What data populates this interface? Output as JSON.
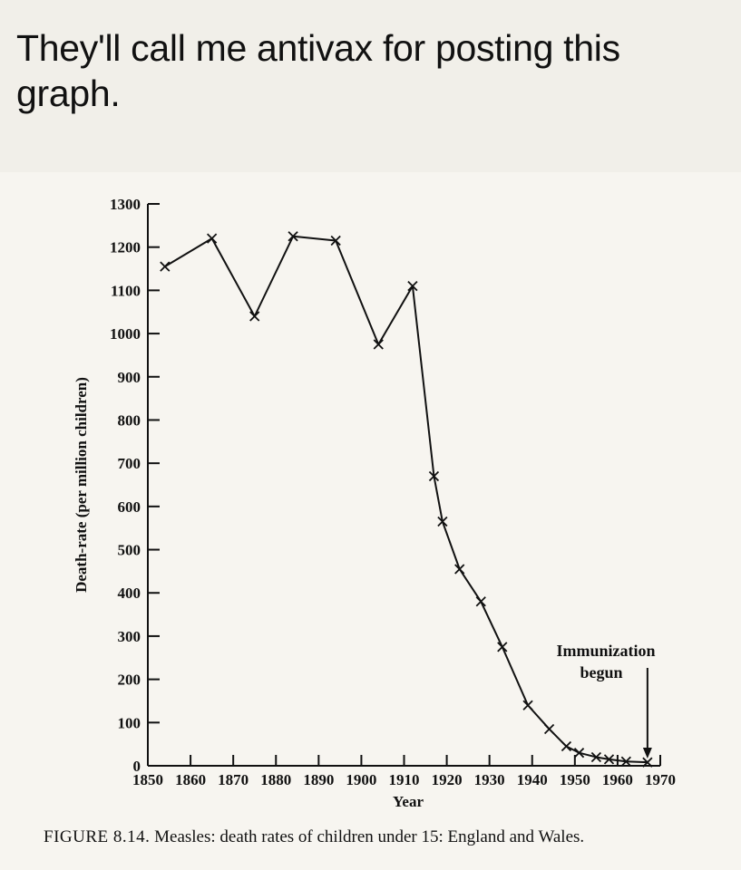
{
  "post": {
    "text": "They'll call me antivax for posting this graph."
  },
  "caption": {
    "label": "FIGURE 8.14.",
    "text": "Measles: death rates of children under 15: England and Wales."
  },
  "chart_data": {
    "type": "line",
    "title": "",
    "xlabel": "Year",
    "ylabel": "Death-rate (per million children)",
    "xlim": [
      1850,
      1970
    ],
    "ylim": [
      0,
      1300
    ],
    "x_ticks": [
      1850,
      1860,
      1870,
      1880,
      1890,
      1900,
      1910,
      1920,
      1930,
      1940,
      1950,
      1960,
      1970
    ],
    "y_ticks": [
      0,
      100,
      200,
      300,
      400,
      500,
      600,
      700,
      800,
      900,
      1000,
      1100,
      1200,
      1300
    ],
    "marker": "x",
    "line_color": "#111111",
    "series": [
      {
        "x": [
          1854,
          1865,
          1875,
          1884,
          1894,
          1904,
          1912,
          1917,
          1919,
          1923,
          1928,
          1933,
          1939,
          1944,
          1948,
          1951,
          1955,
          1958,
          1962,
          1967
        ],
        "y": [
          1155,
          1220,
          1040,
          1225,
          1215,
          975,
          1110,
          670,
          565,
          455,
          380,
          275,
          140,
          85,
          45,
          30,
          20,
          15,
          10,
          8
        ]
      }
    ],
    "annotations": [
      {
        "text_line1": "Immunization",
        "text_line2": "begun",
        "x": 1967,
        "arrow": "down"
      }
    ],
    "grid": false,
    "legend": "none"
  }
}
